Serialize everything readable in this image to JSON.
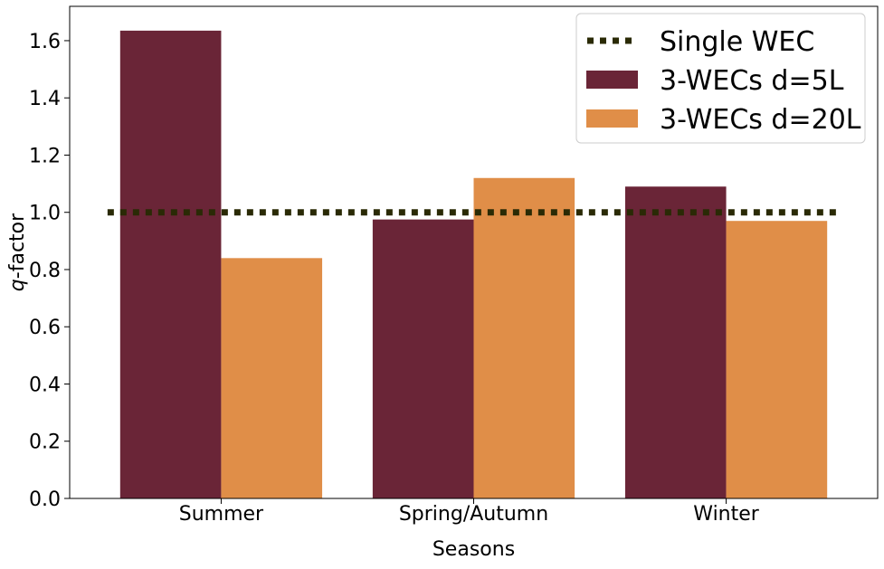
{
  "chart_data": {
    "type": "bar",
    "title": "",
    "xlabel": "Seasons",
    "ylabel_italic": "q",
    "ylabel_rest": "-factor",
    "categories": [
      "Summer",
      "Spring/Autumn",
      "Winter"
    ],
    "ylim": [
      0,
      1.72
    ],
    "yticks": [
      0.0,
      0.2,
      0.4,
      0.6,
      0.8,
      1.0,
      1.2,
      1.4,
      1.6
    ],
    "ytick_labels": [
      "0.0",
      "0.2",
      "0.4",
      "0.6",
      "0.8",
      "1.0",
      "1.2",
      "1.4",
      "1.6"
    ],
    "series": [
      {
        "name": "3-WECs d=5L",
        "values": [
          1.635,
          0.975,
          1.09
        ],
        "color": "#6a2537"
      },
      {
        "name": "3-WECs d=20L",
        "values": [
          0.84,
          1.12,
          0.97
        ],
        "color": "#e08e48"
      }
    ],
    "reference_line": {
      "name": "Single WEC",
      "value": 1.0,
      "style": "dotted",
      "color": "#2a2a05"
    },
    "grid": false,
    "legend_position": "top-right"
  }
}
